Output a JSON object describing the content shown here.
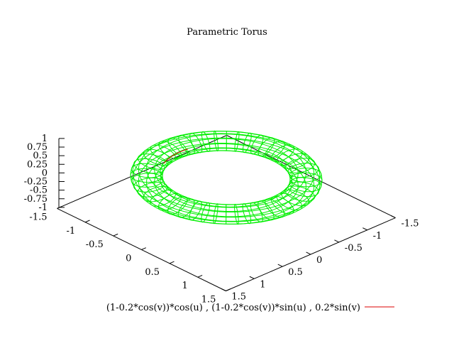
{
  "chart_data": {
    "type": "surface",
    "title": "Parametric Torus",
    "series": [
      {
        "name": "(1-0.2*cos(v))*cos(u) , (1-0.2*cos(v))*sin(u) , 0.2*sin(v)",
        "x_expr": "(1-0.2*cos(v))*cos(u)",
        "y_expr": "(1-0.2*cos(v))*sin(u)",
        "z_expr": "0.2*sin(v)",
        "major_radius": 1,
        "minor_radius": 0.2,
        "u_samples": 48,
        "v_samples": 12,
        "front_color": "#00ee00",
        "back_color": "#dd0000"
      }
    ],
    "xlim": [
      -1.5,
      1.5
    ],
    "ylim": [
      -1.5,
      1.5
    ],
    "zlim": [
      -1,
      1
    ],
    "x_ticks": [
      "-1.5",
      "-1",
      "-0.5",
      "0",
      "0.5",
      "1",
      "1.5"
    ],
    "y_ticks": [
      "-1.5",
      "-1",
      "-0.5",
      "0",
      "0.5",
      "1",
      "1.5"
    ],
    "z_ticks": [
      "-1",
      "-0.75",
      "-0.5",
      "-0.25",
      "0",
      "0.25",
      "0.5",
      "0.75",
      "1"
    ],
    "legend_placement": "bottom-right"
  }
}
